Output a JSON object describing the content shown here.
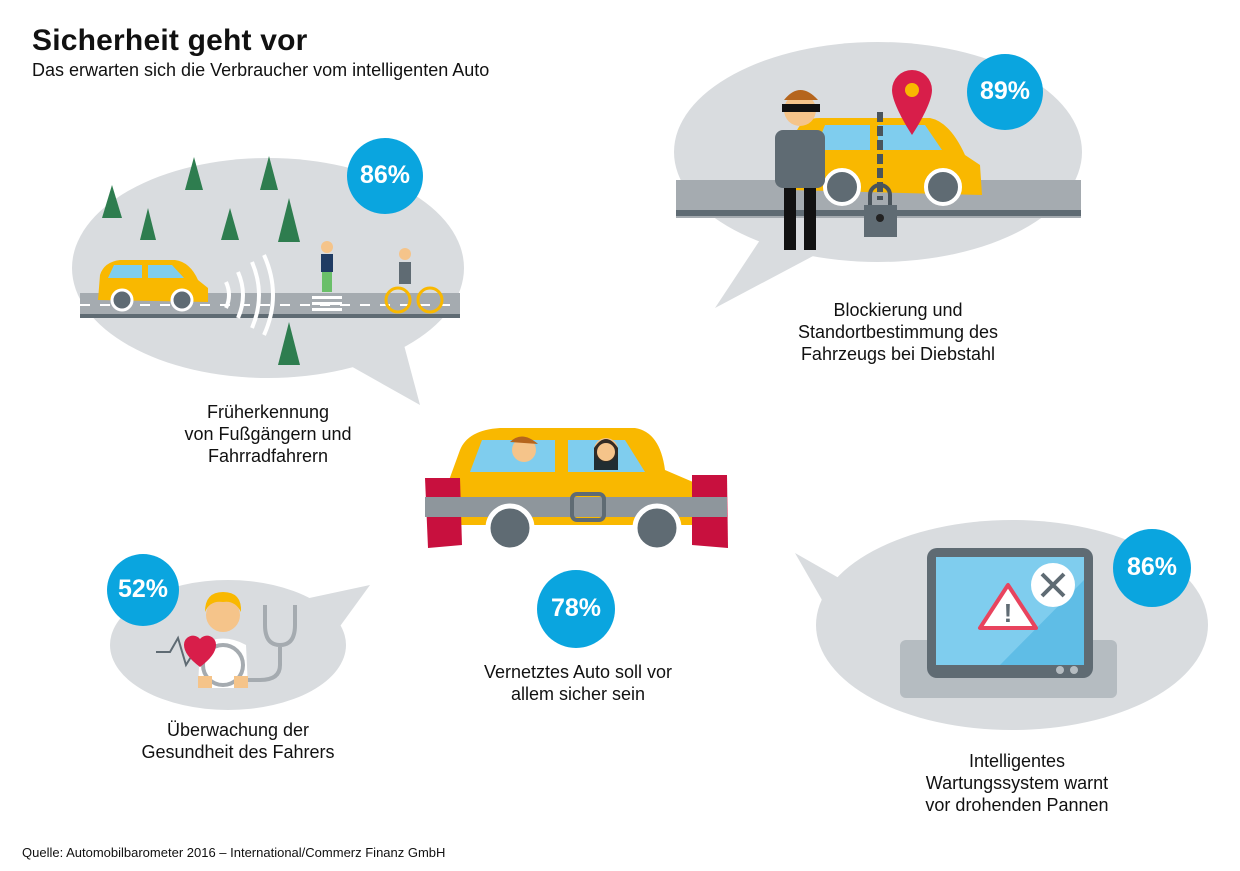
{
  "header": {
    "title": "Sicherheit geht vor",
    "subtitle": "Das erwarten sich die Verbraucher vom intelligenten Auto"
  },
  "items": [
    {
      "percent": "86%",
      "caption": "Früherkennung\nvon Fußgängern und\nFahrradfahrern",
      "icon": "car-pedestrian-detection-icon"
    },
    {
      "percent": "89%",
      "caption": "Blockierung und\nStandortbestimmung des\nFahrzeugs bei Diebstahl",
      "icon": "car-theft-lock-location-icon"
    },
    {
      "percent": "52%",
      "caption": "Überwachung der\nGesundheit des Fahrers",
      "icon": "driver-health-stethoscope-icon"
    },
    {
      "percent": "78%",
      "caption": "Vernetztes Auto soll vor\nallem sicher sein",
      "icon": "safe-connected-car-icon"
    },
    {
      "percent": "86%",
      "caption": "Intelligentes\nWartungssystem warnt\nvor drohenden Pannen",
      "icon": "maintenance-warning-screen-icon"
    }
  ],
  "colors": {
    "bubble": "#d9dcdf",
    "accent": "#0aa5df",
    "car": "#f9b800",
    "road": "#a5abb0"
  },
  "footer": {
    "source": "Quelle: Automobilbarometer 2016 – International/Commerz Finanz GmbH"
  }
}
